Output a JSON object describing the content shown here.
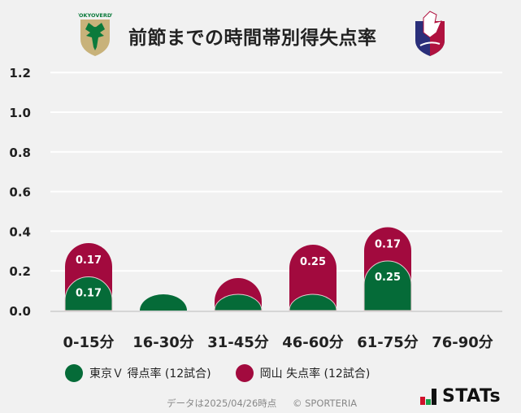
{
  "header": {
    "title": "前節までの時間帯別得失点率",
    "left_logo": "tokyo-verdy-crest",
    "left_logo_text": "TOKYOVERDY",
    "right_logo": "fagiano-okayama-crest"
  },
  "colors": {
    "background": "#f1f1f1",
    "team_a": "#056b38",
    "team_b": "#a20a3e",
    "grid": "#ffffff",
    "axis": "#d6d6d6"
  },
  "chart_data": {
    "type": "bar",
    "stacked": true,
    "title": "前節までの時間帯別得失点率",
    "xlabel": "",
    "ylabel": "",
    "ylim": [
      0,
      1.2
    ],
    "yticks": [
      "0.0",
      "0.2",
      "0.4",
      "0.6",
      "0.8",
      "1.0",
      "1.2"
    ],
    "grid": true,
    "legend_position": "bottom",
    "categories": [
      "0-15分",
      "16-30分",
      "31-45分",
      "46-60分",
      "61-75分",
      "76-90分"
    ],
    "series": [
      {
        "name": "東京Ｖ 得点率 (12試合)",
        "color": "#056b38",
        "values": [
          0.17,
          0,
          0,
          0,
          0.25,
          null
        ],
        "labels": [
          "0.17",
          "",
          "",
          "",
          "0.25",
          ""
        ]
      },
      {
        "name": "岡山 失点率 (12試合)",
        "color": "#a20a3e",
        "values": [
          0.17,
          null,
          0,
          0.25,
          0.17,
          null
        ],
        "labels": [
          "0.17",
          "",
          "",
          "0.25",
          "0.17",
          ""
        ]
      }
    ]
  },
  "legend": [
    {
      "label": "東京Ｖ 得点率 (12試合)",
      "color": "#056b38"
    },
    {
      "label": "岡山 失点率 (12試合)",
      "color": "#a20a3e"
    }
  ],
  "footer": {
    "data_date": "データは2025/04/26時点",
    "copyright": "© SPORTERIA"
  },
  "brand": {
    "name": "STATs"
  }
}
